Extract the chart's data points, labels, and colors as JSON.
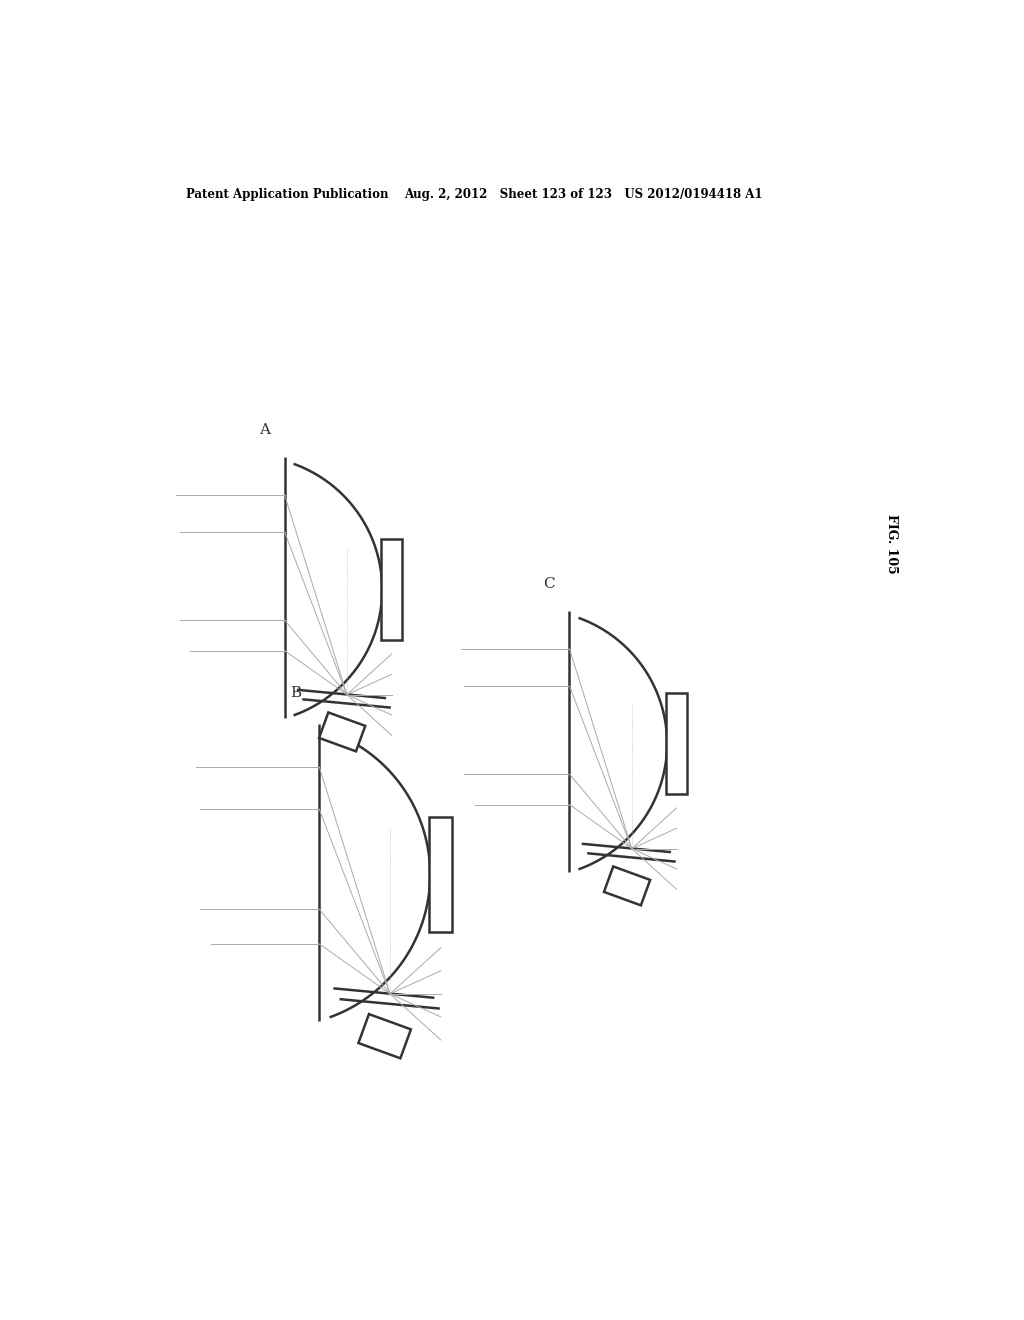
{
  "title_left": "Patent Application Publication",
  "title_mid": "Aug. 2, 2012   Sheet 123 of 123   US 2012/0194418 A1",
  "fig_label": "FIG. 105",
  "bg_color": "#ffffff",
  "line_color": "#333333",
  "ray_color": "#aaaaaa",
  "diagrams": [
    {
      "label": "B",
      "ox": 245,
      "oy": 390,
      "scale": 1.0
    },
    {
      "label": "A",
      "ox": 200,
      "oy": 760,
      "scale": 0.88
    },
    {
      "label": "C",
      "ox": 570,
      "oy": 560,
      "scale": 0.88
    }
  ]
}
